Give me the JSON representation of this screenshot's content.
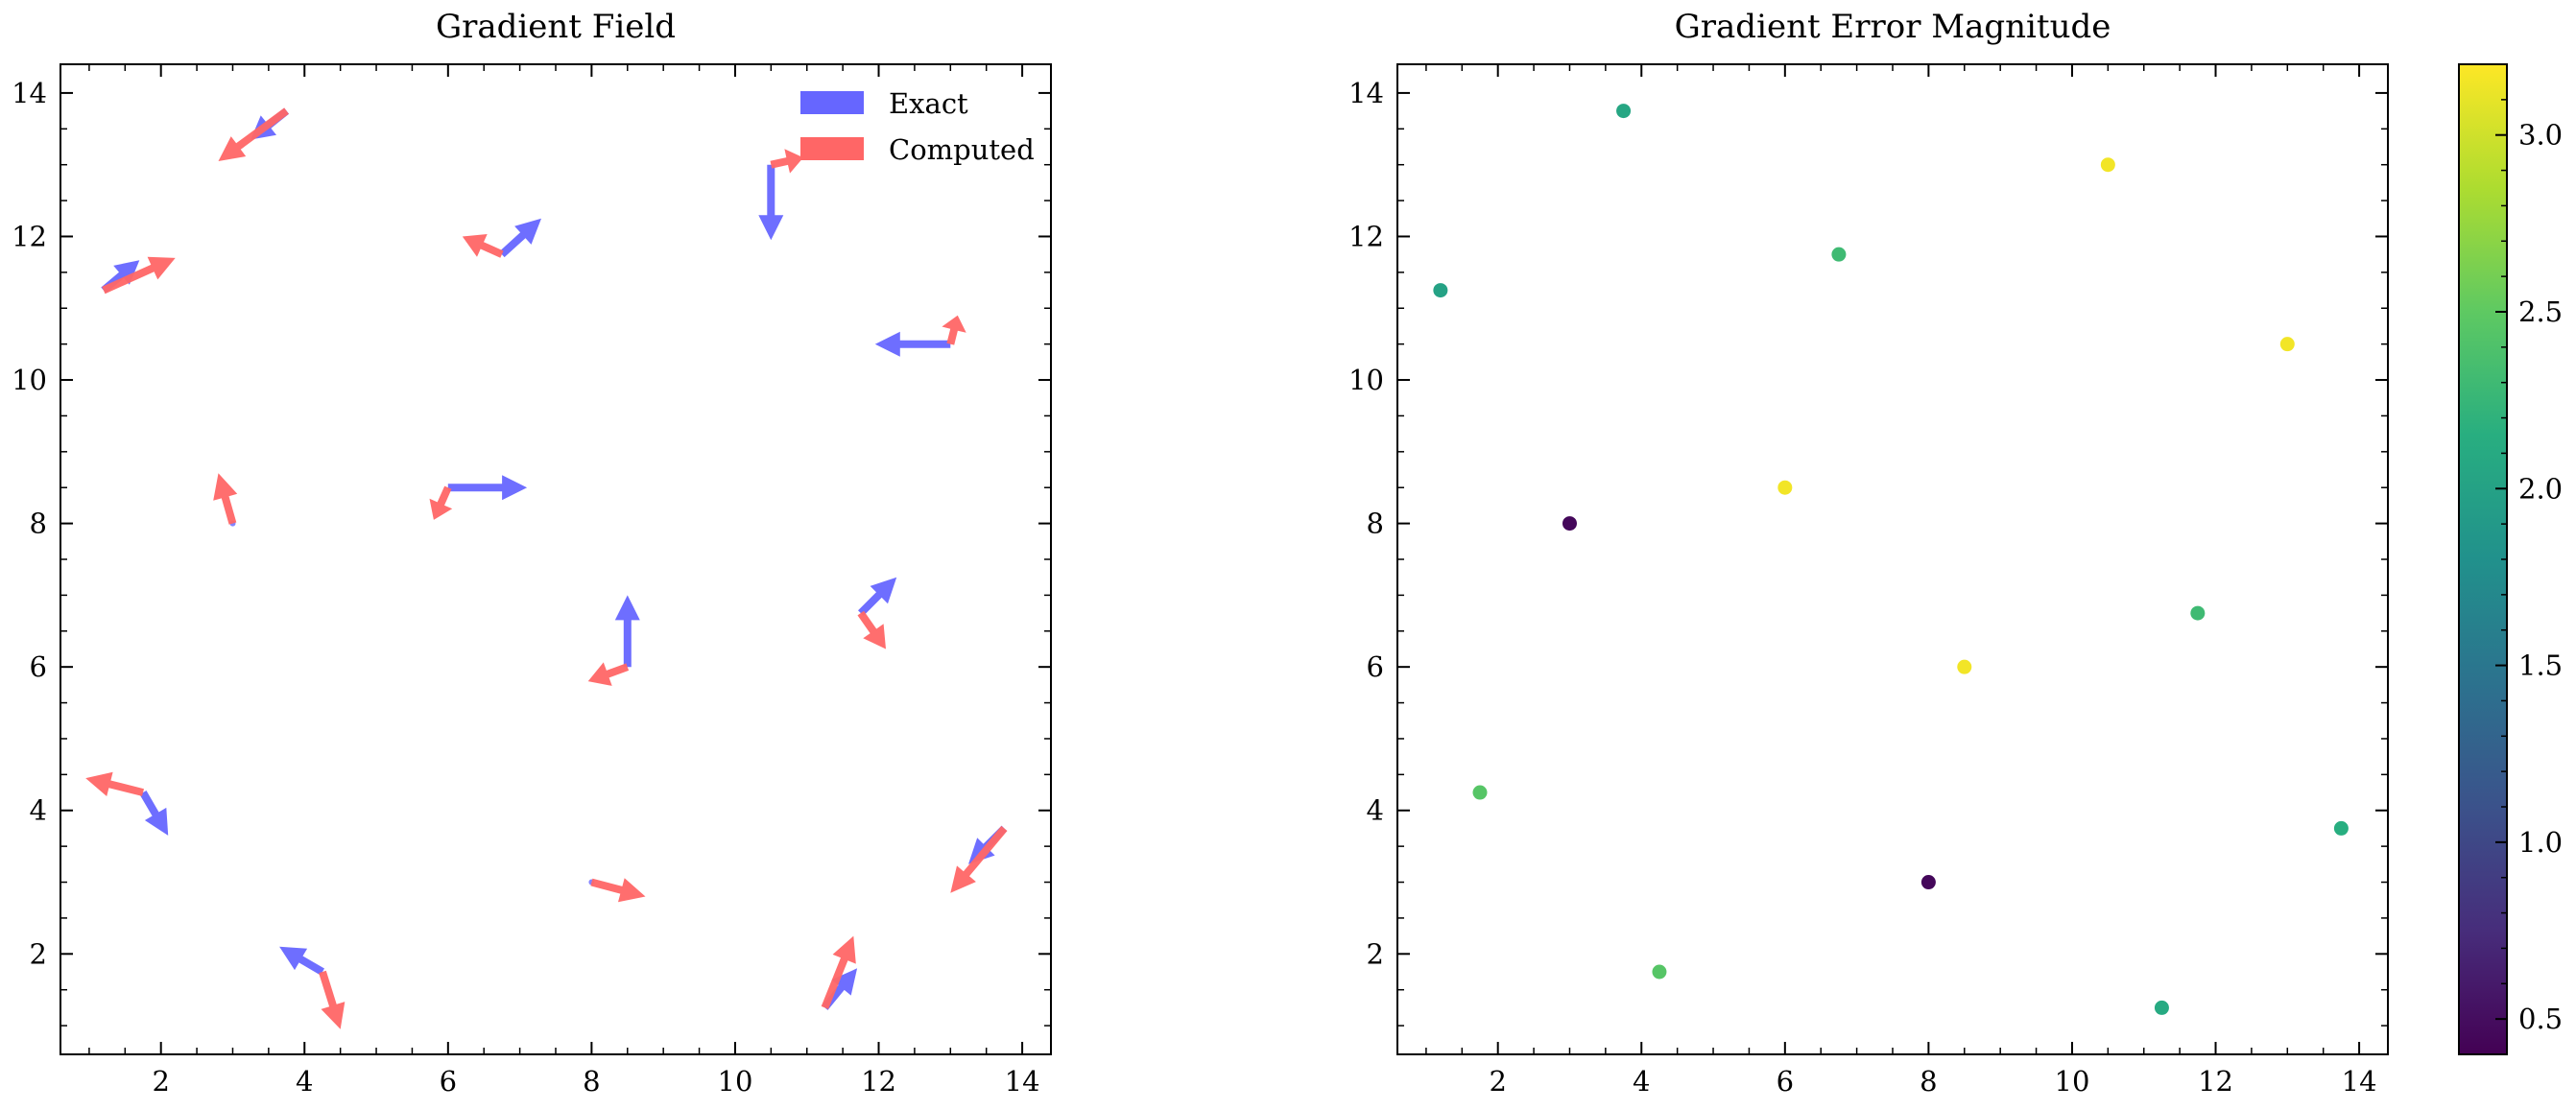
{
  "chart_data": [
    {
      "type": "quiver",
      "title": "Gradient Field",
      "xlabel": "",
      "ylabel": "",
      "xlim": [
        0.6,
        14.4
      ],
      "ylim": [
        0.6,
        14.4
      ],
      "xticks": [
        2,
        4,
        6,
        8,
        10,
        12,
        14
      ],
      "yticks": [
        2,
        4,
        6,
        8,
        10,
        12,
        14
      ],
      "grid": false,
      "legend": {
        "placement": "top-right"
      },
      "series": [
        {
          "name": "Exact",
          "color": "#6666ff",
          "vectors": [
            {
              "x": 3.0,
              "y": 8.0,
              "u": 0.0,
              "v": 0.0
            },
            {
              "x": 6.0,
              "y": 8.5,
              "u": 1.1,
              "v": 0.0
            },
            {
              "x": 8.5,
              "y": 6.0,
              "u": 0.0,
              "v": 1.0
            },
            {
              "x": 10.5,
              "y": 13.0,
              "u": 0.0,
              "v": -1.05
            },
            {
              "x": 13.0,
              "y": 10.5,
              "u": -1.05,
              "v": 0.0
            },
            {
              "x": 1.2,
              "y": 11.25,
              "u": 0.5,
              "v": 0.42
            },
            {
              "x": 3.75,
              "y": 13.75,
              "u": -0.5,
              "v": -0.4
            },
            {
              "x": 6.75,
              "y": 11.75,
              "u": 0.55,
              "v": 0.5
            },
            {
              "x": 11.75,
              "y": 6.75,
              "u": 0.5,
              "v": 0.5
            },
            {
              "x": 1.75,
              "y": 4.25,
              "u": 0.35,
              "v": -0.6
            },
            {
              "x": 4.25,
              "y": 1.75,
              "u": -0.6,
              "v": 0.35
            },
            {
              "x": 11.25,
              "y": 1.25,
              "u": 0.45,
              "v": 0.55
            },
            {
              "x": 13.75,
              "y": 3.75,
              "u": -0.5,
              "v": -0.5
            },
            {
              "x": 8.0,
              "y": 3.0,
              "u": 0.0,
              "v": 0.0
            }
          ]
        },
        {
          "name": "Computed",
          "color": "#ff6666",
          "vectors": [
            {
              "x": 3.0,
              "y": 8.0,
              "u": -0.2,
              "v": 0.7
            },
            {
              "x": 6.0,
              "y": 8.5,
              "u": -0.2,
              "v": -0.45
            },
            {
              "x": 8.5,
              "y": 6.0,
              "u": -0.55,
              "v": -0.2
            },
            {
              "x": 10.5,
              "y": 13.0,
              "u": 0.45,
              "v": 0.1
            },
            {
              "x": 13.0,
              "y": 10.5,
              "u": 0.1,
              "v": 0.4
            },
            {
              "x": 1.2,
              "y": 11.25,
              "u": 1.0,
              "v": 0.45
            },
            {
              "x": 3.75,
              "y": 13.75,
              "u": -0.95,
              "v": -0.7
            },
            {
              "x": 6.75,
              "y": 11.75,
              "u": -0.55,
              "v": 0.25
            },
            {
              "x": 11.75,
              "y": 6.75,
              "u": 0.35,
              "v": -0.5
            },
            {
              "x": 1.75,
              "y": 4.25,
              "u": -0.8,
              "v": 0.2
            },
            {
              "x": 4.25,
              "y": 1.75,
              "u": 0.25,
              "v": -0.8
            },
            {
              "x": 11.25,
              "y": 1.25,
              "u": 0.4,
              "v": 1.0
            },
            {
              "x": 13.75,
              "y": 3.75,
              "u": -0.75,
              "v": -0.9
            },
            {
              "x": 8.0,
              "y": 3.0,
              "u": 0.75,
              "v": -0.2
            }
          ]
        }
      ]
    },
    {
      "type": "scatter",
      "title": "Gradient Error Magnitude",
      "xlabel": "",
      "ylabel": "",
      "xlim": [
        0.6,
        14.4
      ],
      "ylim": [
        0.6,
        14.4
      ],
      "xticks": [
        2,
        4,
        6,
        8,
        10,
        12,
        14
      ],
      "yticks": [
        2,
        4,
        6,
        8,
        10,
        12,
        14
      ],
      "grid": false,
      "colormap": "viridis",
      "colorbar": {
        "range": [
          0.4,
          3.2
        ],
        "ticks": [
          "0.5",
          "1.0",
          "1.5",
          "2.0",
          "2.5",
          "3.0"
        ]
      },
      "points": [
        {
          "x": 1.2,
          "y": 11.25,
          "value": 2.0
        },
        {
          "x": 3.75,
          "y": 13.75,
          "value": 2.05
        },
        {
          "x": 6.75,
          "y": 11.75,
          "value": 2.3
        },
        {
          "x": 10.5,
          "y": 13.0,
          "value": 3.15
        },
        {
          "x": 13.0,
          "y": 10.5,
          "value": 3.15
        },
        {
          "x": 3.0,
          "y": 8.0,
          "value": 0.45
        },
        {
          "x": 6.0,
          "y": 8.5,
          "value": 3.15
        },
        {
          "x": 8.5,
          "y": 6.0,
          "value": 3.15
        },
        {
          "x": 11.75,
          "y": 6.75,
          "value": 2.3
        },
        {
          "x": 1.75,
          "y": 4.25,
          "value": 2.45
        },
        {
          "x": 4.25,
          "y": 1.75,
          "value": 2.45
        },
        {
          "x": 8.0,
          "y": 3.0,
          "value": 0.45
        },
        {
          "x": 11.25,
          "y": 1.25,
          "value": 2.1
        },
        {
          "x": 13.75,
          "y": 3.75,
          "value": 2.15
        }
      ]
    }
  ]
}
